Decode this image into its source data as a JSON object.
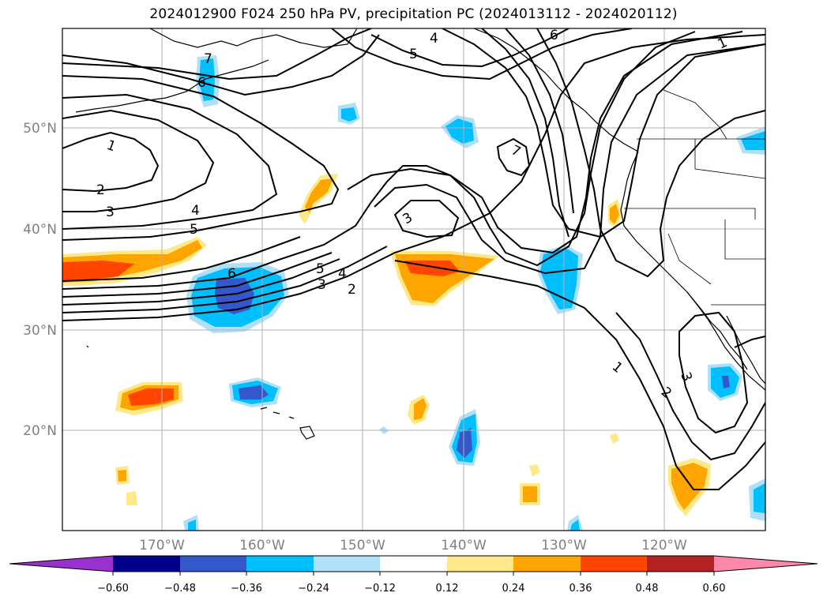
{
  "title": "2024012900 F024 250 hPa PV, precipitation PC (2024013112 - 2024020112)",
  "latitude_labels": [
    "50°N",
    "40°N",
    "30°N",
    "20°N"
  ],
  "longitude_labels": [
    "170°W",
    "160°W",
    "150°W",
    "140°W",
    "130°W",
    "120°W"
  ],
  "colorbar": {
    "tick_labels": [
      "−0.60",
      "−0.48",
      "−0.36",
      "−0.24",
      "−0.12",
      "0.12",
      "0.24",
      "0.36",
      "0.48",
      "0.60"
    ],
    "colors": [
      "#9932cc",
      "#00008b",
      "#3557cc",
      "#00bfff",
      "#afe0f8",
      "#ffffff",
      "#fde98a",
      "#ffa500",
      "#ff4500",
      "#b22222",
      "#ff88aa"
    ]
  },
  "pv_contour_labels": [
    "1",
    "2",
    "3",
    "4",
    "5",
    "6",
    "7"
  ],
  "colors": {
    "contour": "#000000",
    "coast": "#000000",
    "grid": "#b0b0b0",
    "frame": "#000000"
  }
}
